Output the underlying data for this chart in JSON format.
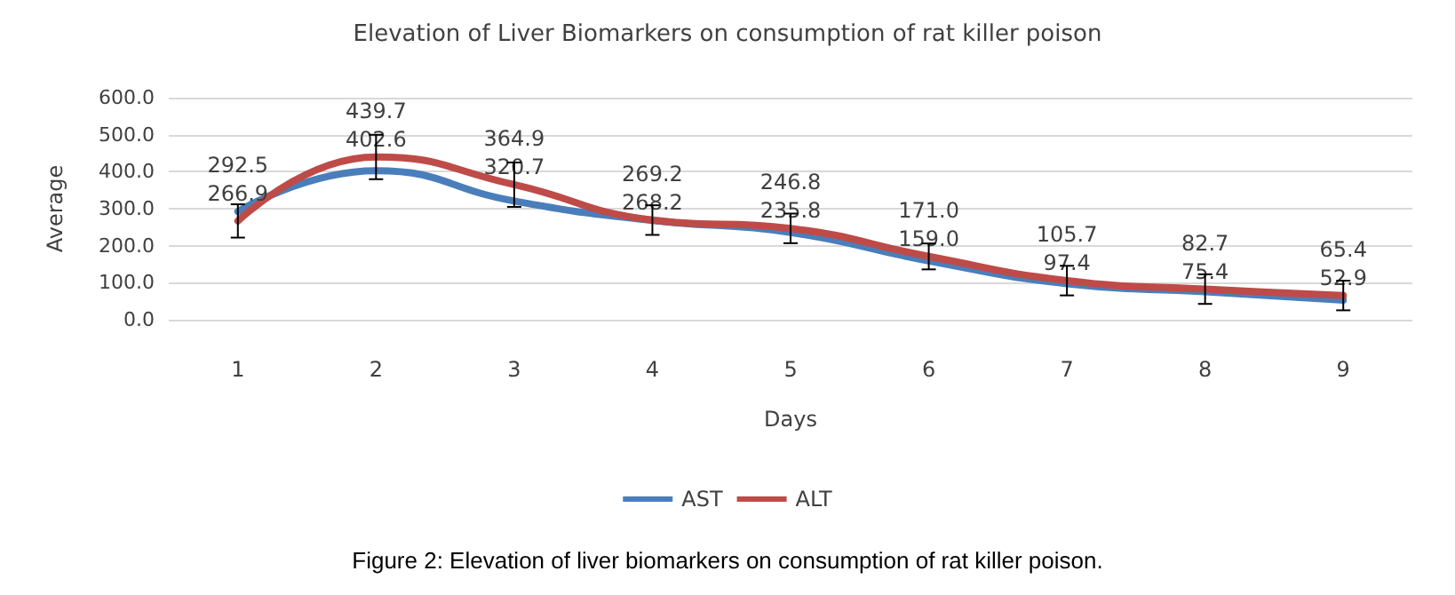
{
  "chart_data": {
    "type": "line",
    "title": "Elevation of Liver Biomarkers on consumption of rat killer poison",
    "xlabel": "Days",
    "ylabel": "Average",
    "categories": [
      "1",
      "2",
      "3",
      "4",
      "5",
      "6",
      "7",
      "8",
      "9"
    ],
    "series": [
      {
        "name": "AST",
        "color": "#4a7ebb",
        "values": [
          292.5,
          402.6,
          320.7,
          268.2,
          235.8,
          159.0,
          97.4,
          75.4,
          52.9
        ],
        "value_labels": [
          "292.5",
          "402.6",
          "320.7",
          "268.2",
          "235.8",
          "159.0",
          "97.4",
          "75.4",
          "52.9"
        ]
      },
      {
        "name": "ALT",
        "color": "#be4b48",
        "values": [
          266.9,
          439.7,
          364.9,
          269.2,
          246.8,
          171.0,
          105.7,
          82.7,
          65.4
        ],
        "value_labels": [
          "266.9",
          "439.7",
          "364.9",
          "269.2",
          "246.8",
          "171.0",
          "105.7",
          "82.7",
          "65.4"
        ],
        "errors": [
          45,
          60,
          60,
          40,
          40,
          35,
          40,
          40,
          40
        ]
      }
    ],
    "ylim": [
      0,
      600
    ],
    "yticks": [
      {
        "value": 0,
        "label": "0.0"
      },
      {
        "value": 100,
        "label": "100.0"
      },
      {
        "value": 200,
        "label": "200.0"
      },
      {
        "value": 300,
        "label": "300.0"
      },
      {
        "value": 400,
        "label": "400.0"
      },
      {
        "value": 500,
        "label": "500.0"
      },
      {
        "value": 600,
        "label": "600.0"
      }
    ],
    "grid": "y",
    "legend": "bottom",
    "marker": "none",
    "line_style": "solid",
    "annotations": [
      "Figure 2: Elevation of liver biomarkers on consumption of rat killer poison."
    ]
  }
}
